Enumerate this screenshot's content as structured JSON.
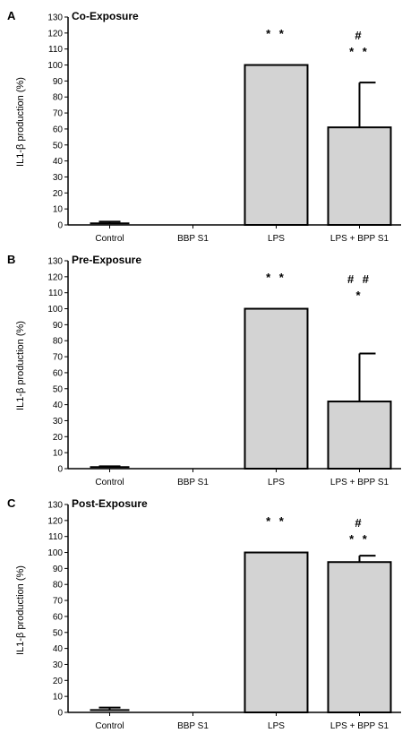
{
  "chart_data": [
    {
      "type": "bar",
      "panel": "A",
      "title": "Co-Exposure",
      "ylabel": "IL1-β production (%)",
      "xlabel": "",
      "categories": [
        "Control",
        "BBP S1",
        "LPS",
        "LPS + BPP S1"
      ],
      "values": [
        1,
        0,
        100,
        61
      ],
      "errors": [
        1,
        0,
        0,
        28
      ],
      "ylim": [
        0,
        130
      ],
      "yticks": [
        "0",
        "10",
        "20",
        "30",
        "40",
        "50",
        "60",
        "70",
        "80",
        "90",
        "100",
        "110",
        "120",
        "130"
      ],
      "annotations": [
        {
          "category": "LPS",
          "lines": [
            "* *"
          ]
        },
        {
          "category": "LPS + BPP S1",
          "lines": [
            "#",
            "* *"
          ]
        }
      ],
      "grid": false,
      "bar_color": "#d3d3d3"
    },
    {
      "type": "bar",
      "panel": "B",
      "title": "Pre-Exposure",
      "ylabel": "IL1-β production (%)",
      "xlabel": "",
      "categories": [
        "Control",
        "BBP S1",
        "LPS",
        "LPS + BPP S1"
      ],
      "values": [
        1,
        0,
        100,
        42
      ],
      "errors": [
        0.5,
        0,
        0,
        30
      ],
      "ylim": [
        0,
        130
      ],
      "yticks": [
        "0",
        "10",
        "20",
        "30",
        "40",
        "50",
        "60",
        "70",
        "80",
        "90",
        "100",
        "110",
        "120",
        "130"
      ],
      "annotations": [
        {
          "category": "LPS",
          "lines": [
            "* *"
          ]
        },
        {
          "category": "LPS + BPP S1",
          "lines": [
            "# #",
            "*"
          ]
        }
      ],
      "grid": false,
      "bar_color": "#d3d3d3"
    },
    {
      "type": "bar",
      "panel": "C",
      "title": "Post-Exposure",
      "ylabel": "IL1-β production (%)",
      "xlabel": "",
      "categories": [
        "Control",
        "BBP S1",
        "LPS",
        "LPS + BPP S1"
      ],
      "values": [
        1.5,
        0,
        100,
        94
      ],
      "errors": [
        1.5,
        0,
        0,
        4
      ],
      "ylim": [
        0,
        130
      ],
      "yticks": [
        "0",
        "10",
        "20",
        "30",
        "40",
        "50",
        "60",
        "70",
        "80",
        "90",
        "100",
        "110",
        "120",
        "130"
      ],
      "annotations": [
        {
          "category": "LPS",
          "lines": [
            "* *"
          ]
        },
        {
          "category": "LPS + BPP S1",
          "lines": [
            "#",
            "* *"
          ]
        }
      ],
      "grid": false,
      "bar_color": "#d3d3d3"
    }
  ]
}
